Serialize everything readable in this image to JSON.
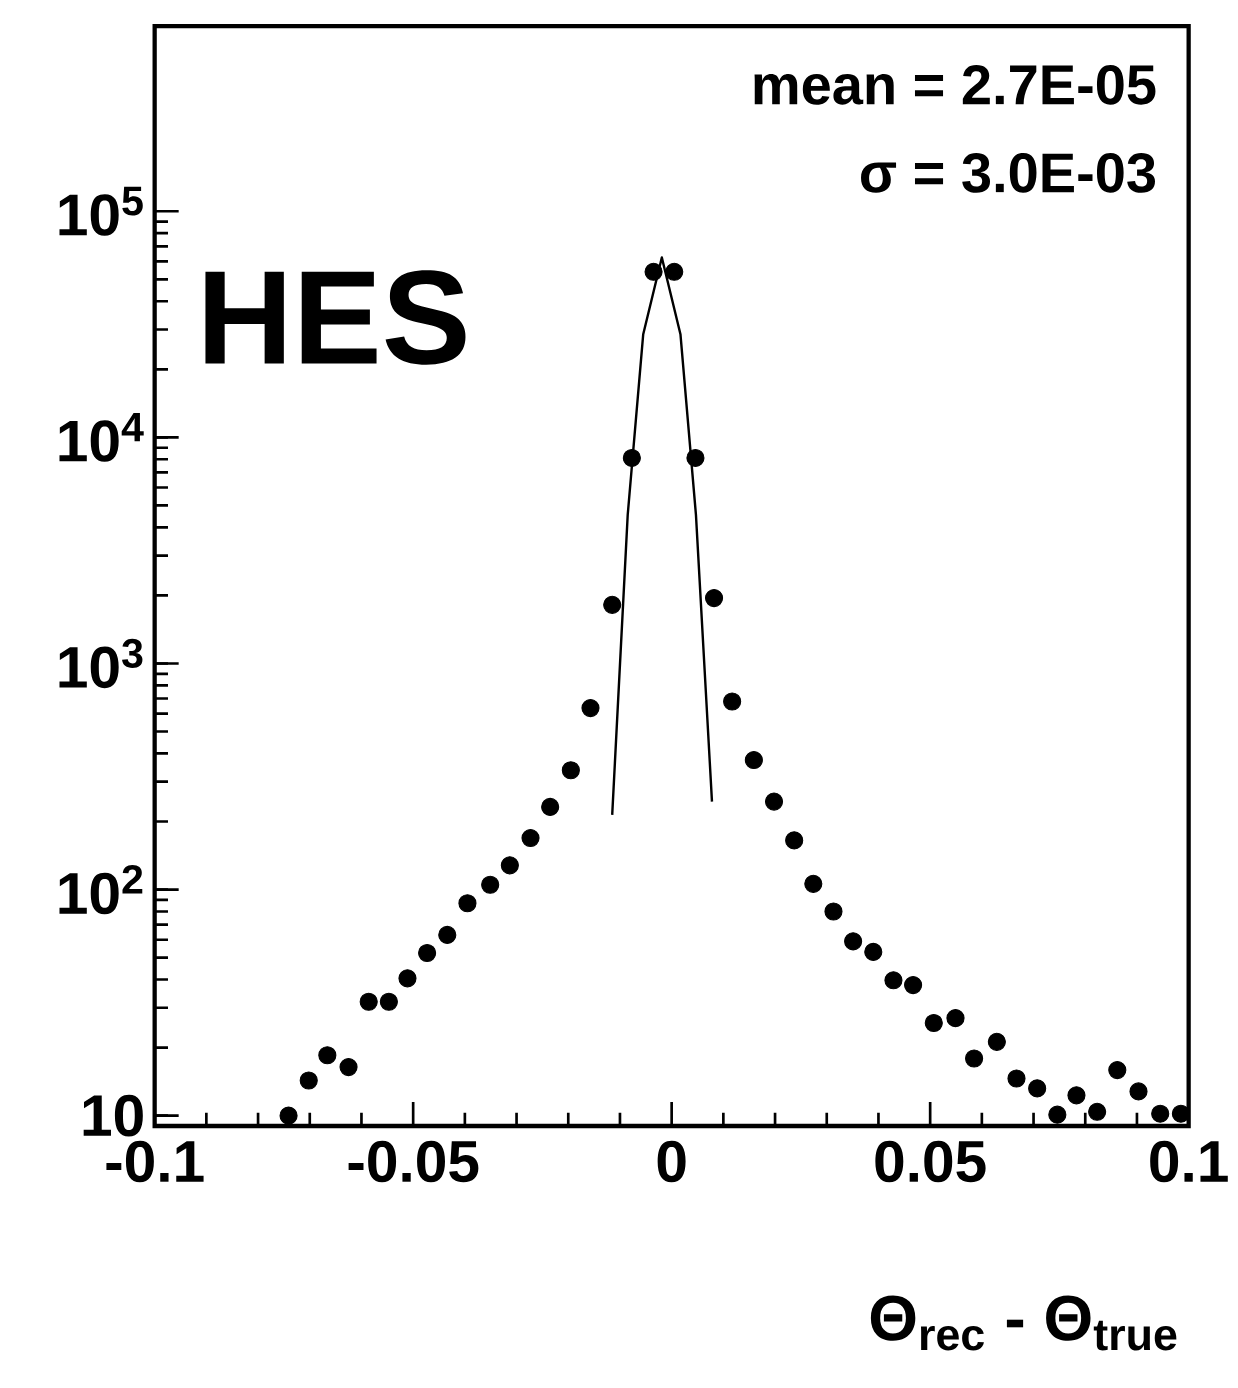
{
  "chart_data": {
    "type": "scatter",
    "xlabel": "Θ$_{rec}$ - Θ$_{true}$",
    "annotations": [
      "mean = 2.7E-05",
      "σ = 3.0E-03",
      "HES"
    ],
    "log": "y",
    "grid": false,
    "xlim": [
      -0.1,
      0.1
    ],
    "ylim": [
      9,
      660000
    ],
    "xticks": [
      -0.1,
      -0.05,
      0,
      0.05,
      0.1
    ],
    "yticks": [
      10,
      {
        "value": 100,
        "label": "10$^{2}$"
      },
      {
        "value": 1000,
        "label": "10$^{3}$"
      },
      {
        "value": 10000,
        "label": "10$^{4}$"
      },
      {
        "value": 100000,
        "label": "10$^{5}$"
      }
    ],
    "series": [
      {
        "color": "#000000",
        "marker": "circle",
        "x": [
          -0.0741,
          -0.0702,
          -0.0666,
          -0.0625,
          -0.0586,
          -0.0547,
          -0.0511,
          -0.0473,
          -0.0434,
          -0.0395,
          -0.0351,
          -0.0313,
          -0.0273,
          -0.0235,
          -0.0195,
          -0.0157,
          -0.0115,
          -0.0077,
          -0.0035,
          0.0005,
          0.0046,
          0.0082,
          0.0117,
          0.0159,
          0.0198,
          0.0237,
          0.0274,
          0.0313,
          0.0351,
          0.039,
          0.0429,
          0.0467,
          0.0507,
          0.0549,
          0.0585,
          0.0629,
          0.0667,
          0.0707,
          0.0746,
          0.0783,
          0.0823,
          0.0862,
          0.0903,
          0.0945,
          0.0985
        ],
        "values": [
          10,
          14.3,
          18.5,
          16.4,
          31.9,
          31.9,
          40.5,
          52.4,
          63,
          87,
          105,
          128,
          169,
          232,
          337,
          635,
          1817,
          8110,
          54000,
          54000,
          8110,
          1947,
          679,
          374,
          245,
          165,
          106,
          80,
          59,
          53,
          39.7,
          37.8,
          25.7,
          27,
          17.9,
          21.2,
          14.6,
          13.2,
          10.1,
          12.3,
          10.4,
          15.9,
          12.8,
          10.2,
          10.2
        ]
      },
      {
        "type": "line",
        "color": "#000000",
        "marker": "none",
        "line_style": "solid",
        "x": [
          -0.0115,
          -0.0085,
          -0.0055,
          -0.0019,
          0.0017,
          0.0047,
          0.0078
        ],
        "values": [
          214,
          4540,
          28600,
          62500,
          28600,
          4540,
          245
        ]
      }
    ]
  }
}
